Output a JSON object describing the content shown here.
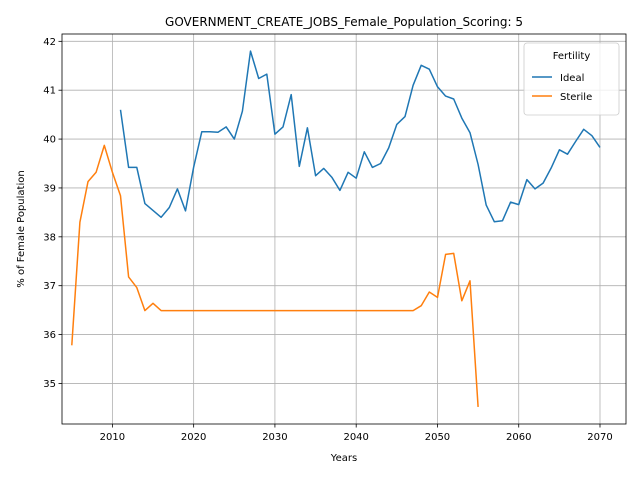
{
  "chart_data": {
    "type": "line",
    "title": "GOVERNMENT_CREATE_JOBS_Female_Population_Scoring: 5",
    "xlabel": "Years",
    "ylabel": "% of Female Population",
    "xlim": [
      2003.8,
      2073.2
    ],
    "ylim": [
      34.17,
      42.15
    ],
    "xticks": [
      2010,
      2020,
      2030,
      2040,
      2050,
      2060,
      2070
    ],
    "yticks": [
      35,
      36,
      37,
      38,
      39,
      40,
      41,
      42
    ],
    "grid": true,
    "legend": {
      "title": "Fertility",
      "position": "top-right"
    },
    "series": [
      {
        "name": "Ideal",
        "color": "#1f77b4",
        "x": [
          2011,
          2012,
          2013,
          2014,
          2015,
          2016,
          2017,
          2018,
          2019,
          2020,
          2021,
          2022,
          2023,
          2024,
          2025,
          2026,
          2027,
          2028,
          2029,
          2030,
          2031,
          2032,
          2033,
          2034,
          2035,
          2036,
          2037,
          2038,
          2039,
          2040,
          2041,
          2042,
          2043,
          2044,
          2045,
          2046,
          2047,
          2048,
          2049,
          2050,
          2051,
          2052,
          2053,
          2054,
          2055,
          2056,
          2057,
          2058,
          2059,
          2060,
          2061,
          2062,
          2063,
          2064,
          2065,
          2066,
          2067,
          2068,
          2069,
          2070
        ],
        "y": [
          40.6,
          39.42,
          39.42,
          38.68,
          38.54,
          38.4,
          38.6,
          38.98,
          38.53,
          39.43,
          40.15,
          40.15,
          40.14,
          40.25,
          40.0,
          40.57,
          41.8,
          41.24,
          41.33,
          40.1,
          40.25,
          40.91,
          39.44,
          40.23,
          39.25,
          39.4,
          39.22,
          38.95,
          39.32,
          39.2,
          39.74,
          39.42,
          39.5,
          39.82,
          40.3,
          40.46,
          41.1,
          41.51,
          41.43,
          41.07,
          40.88,
          40.82,
          40.43,
          40.13,
          39.48,
          38.65,
          38.31,
          38.33,
          38.71,
          38.66,
          39.17,
          38.98,
          39.1,
          39.41,
          39.78,
          39.69,
          39.95,
          40.2,
          40.07,
          39.83
        ]
      },
      {
        "name": "Sterile",
        "color": "#ff7f0e",
        "x": [
          2005,
          2006,
          2007,
          2008,
          2009,
          2010,
          2011,
          2012,
          2013,
          2014,
          2015,
          2016,
          2017,
          2018,
          2019,
          2020,
          2021,
          2022,
          2023,
          2024,
          2025,
          2026,
          2027,
          2028,
          2029,
          2030,
          2031,
          2032,
          2033,
          2034,
          2035,
          2036,
          2037,
          2038,
          2039,
          2040,
          2041,
          2042,
          2043,
          2044,
          2045,
          2046,
          2047,
          2048,
          2049,
          2050,
          2051,
          2052,
          2053,
          2054,
          2055
        ],
        "y": [
          35.78,
          38.3,
          39.13,
          39.32,
          39.87,
          39.32,
          38.84,
          37.18,
          36.96,
          36.49,
          36.64,
          36.49,
          36.49,
          36.49,
          36.49,
          36.49,
          36.49,
          36.49,
          36.49,
          36.49,
          36.49,
          36.49,
          36.49,
          36.49,
          36.49,
          36.49,
          36.49,
          36.49,
          36.49,
          36.49,
          36.49,
          36.49,
          36.49,
          36.49,
          36.49,
          36.49,
          36.49,
          36.49,
          36.49,
          36.49,
          36.49,
          36.49,
          36.49,
          36.59,
          36.87,
          36.76,
          37.64,
          37.66,
          36.69,
          37.1,
          34.52
        ]
      }
    ]
  }
}
